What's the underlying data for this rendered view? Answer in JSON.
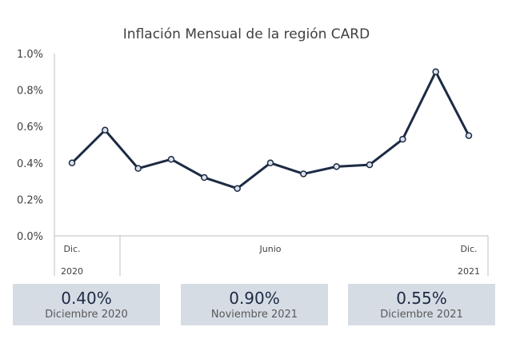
{
  "chart_data": {
    "type": "line",
    "title": "Inflación Mensual de la región CARD",
    "y_ticks": [
      "1.0%",
      "0.8%",
      "0.6%",
      "0.4%",
      "0.2%",
      "0.0%"
    ],
    "ylim": [
      0,
      1.0
    ],
    "x_labels": [
      {
        "text": "Dic.",
        "index": 0
      },
      {
        "text": "Junio",
        "index": 6
      },
      {
        "text": "Dic.",
        "index": 12
      }
    ],
    "year_labels": [
      {
        "text": "2020",
        "index": 0
      },
      {
        "text": "2021",
        "index": 12
      }
    ],
    "series": [
      {
        "values": [
          0.4,
          0.58,
          0.37,
          0.42,
          0.32,
          0.26,
          0.4,
          0.34,
          0.38,
          0.39,
          0.53,
          0.9,
          0.55
        ],
        "color": "#1c2a44"
      }
    ],
    "grid": false
  },
  "cards": [
    {
      "value": "0.40%",
      "label": "Diciembre 2020"
    },
    {
      "value": "0.90%",
      "label": "Noviembre 2021"
    },
    {
      "value": "0.55%",
      "label": "Diciembre 2021"
    }
  ]
}
